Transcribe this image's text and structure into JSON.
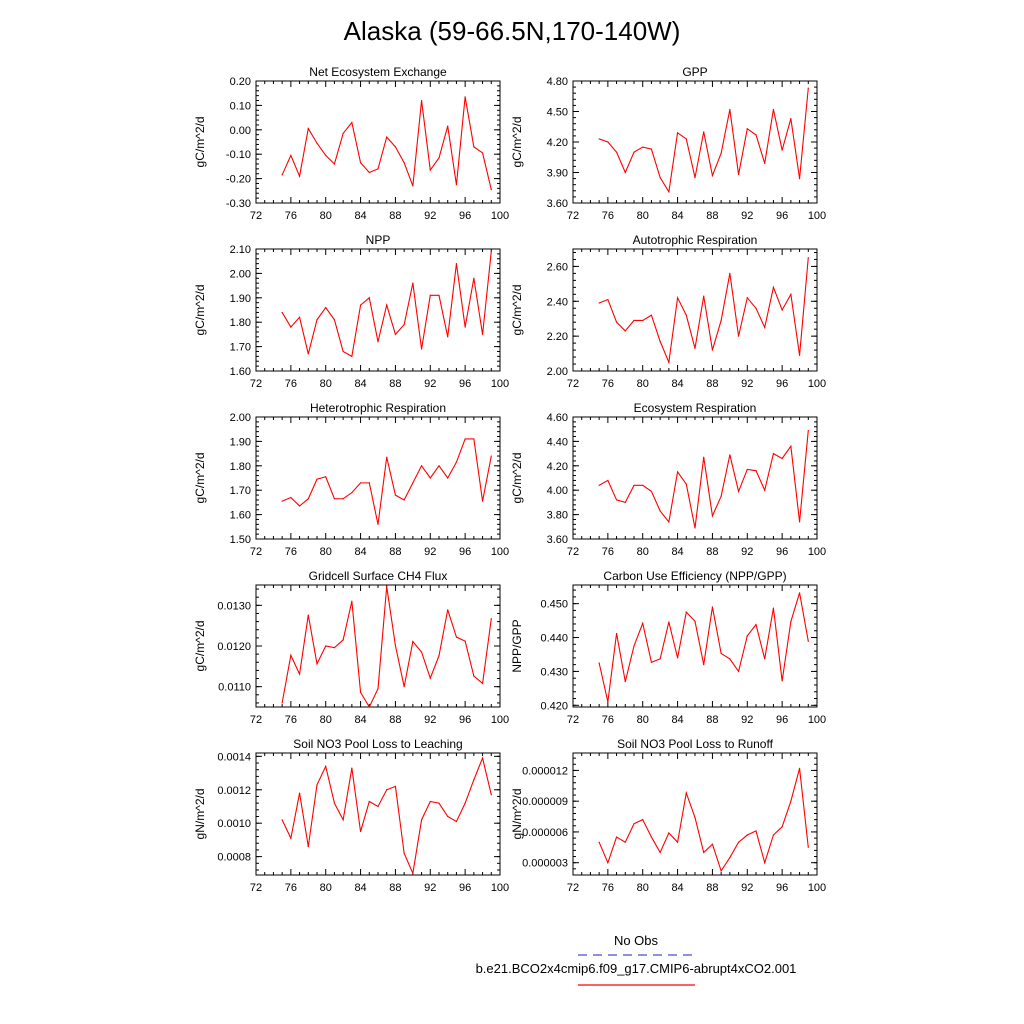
{
  "main_title": "Alaska (59-66.5N,170-140W)",
  "legend": {
    "obs_label": "No Obs",
    "obs_color": "#4a4ad0",
    "model_label": "b.e21.BCO2x4cmip6.f09_g17.CMIP6-abrupt4xCO2.001",
    "model_color": "#ff0000"
  },
  "chart_data": [
    {
      "type": "line",
      "title": "Net Ecosystem Exchange",
      "ylabel": "gC/m^2/d",
      "xlim": [
        72,
        100
      ],
      "xticks": [
        "72",
        "76",
        "80",
        "84",
        "88",
        "92",
        "96",
        "100"
      ],
      "ylim": [
        -0.3,
        0.2
      ],
      "yticks": [
        "-0.30",
        "-0.20",
        "-0.10",
        "0.00",
        "0.10",
        "0.20"
      ],
      "x": [
        75,
        76,
        77,
        78,
        79,
        80,
        81,
        82,
        83,
        84,
        85,
        86,
        87,
        88,
        89,
        90,
        91,
        92,
        93,
        94,
        95,
        96,
        97,
        98,
        99
      ],
      "series": [
        {
          "values": [
            -0.185,
            -0.105,
            -0.19,
            0.005,
            -0.055,
            -0.105,
            -0.14,
            -0.015,
            0.03,
            -0.135,
            -0.175,
            -0.16,
            -0.03,
            -0.07,
            -0.135,
            -0.23,
            0.12,
            -0.165,
            -0.115,
            0.015,
            -0.225,
            0.135,
            -0.07,
            -0.095,
            -0.245
          ]
        }
      ]
    },
    {
      "type": "line",
      "title": "GPP",
      "ylabel": "gC/m^2/d",
      "xlim": [
        72,
        100
      ],
      "xticks": [
        "72",
        "76",
        "80",
        "84",
        "88",
        "92",
        "96",
        "100"
      ],
      "ylim": [
        3.6,
        4.8
      ],
      "yticks": [
        "3.60",
        "3.90",
        "4.20",
        "4.50",
        "4.80"
      ],
      "x": [
        75,
        76,
        77,
        78,
        79,
        80,
        81,
        82,
        83,
        84,
        85,
        86,
        87,
        88,
        89,
        90,
        91,
        92,
        93,
        94,
        95,
        96,
        97,
        98,
        99
      ],
      "series": [
        {
          "values": [
            4.23,
            4.2,
            4.1,
            3.9,
            4.1,
            4.15,
            4.13,
            3.85,
            3.71,
            4.29,
            4.23,
            3.85,
            4.3,
            3.87,
            4.09,
            4.52,
            3.88,
            4.33,
            4.27,
            3.99,
            4.52,
            4.12,
            4.43,
            3.84,
            4.73
          ]
        }
      ]
    },
    {
      "type": "line",
      "title": "NPP",
      "ylabel": "gC/m^2/d",
      "xlim": [
        72,
        100
      ],
      "xticks": [
        "72",
        "76",
        "80",
        "84",
        "88",
        "92",
        "96",
        "100"
      ],
      "ylim": [
        1.6,
        2.1
      ],
      "yticks": [
        "1.60",
        "1.70",
        "1.80",
        "1.90",
        "2.00",
        "2.10"
      ],
      "x": [
        75,
        76,
        77,
        78,
        79,
        80,
        81,
        82,
        83,
        84,
        85,
        86,
        87,
        88,
        89,
        90,
        91,
        92,
        93,
        94,
        95,
        96,
        97,
        98,
        99
      ],
      "series": [
        {
          "values": [
            1.84,
            1.78,
            1.82,
            1.67,
            1.81,
            1.86,
            1.81,
            1.68,
            1.66,
            1.87,
            1.9,
            1.72,
            1.87,
            1.75,
            1.79,
            1.96,
            1.69,
            1.91,
            1.91,
            1.74,
            2.04,
            1.78,
            1.98,
            1.75,
            2.09
          ]
        }
      ]
    },
    {
      "type": "line",
      "title": "Autotrophic Respiration",
      "ylabel": "gC/m^2/d",
      "xlim": [
        72,
        100
      ],
      "xticks": [
        "72",
        "76",
        "80",
        "84",
        "88",
        "92",
        "96",
        "100"
      ],
      "ylim": [
        2.0,
        2.7
      ],
      "yticks": [
        "2.00",
        "2.20",
        "2.40",
        "2.60"
      ],
      "x": [
        75,
        76,
        77,
        78,
        79,
        80,
        81,
        82,
        83,
        84,
        85,
        86,
        87,
        88,
        89,
        90,
        91,
        92,
        93,
        94,
        95,
        96,
        97,
        98,
        99
      ],
      "series": [
        {
          "values": [
            2.39,
            2.41,
            2.28,
            2.23,
            2.29,
            2.29,
            2.32,
            2.17,
            2.05,
            2.42,
            2.32,
            2.13,
            2.43,
            2.12,
            2.29,
            2.56,
            2.2,
            2.42,
            2.36,
            2.25,
            2.48,
            2.35,
            2.44,
            2.09,
            2.65
          ]
        }
      ]
    },
    {
      "type": "line",
      "title": "Heterotrophic Respiration",
      "ylabel": "gC/m^2/d",
      "xlim": [
        72,
        100
      ],
      "xticks": [
        "72",
        "76",
        "80",
        "84",
        "88",
        "92",
        "96",
        "100"
      ],
      "ylim": [
        1.5,
        2.0
      ],
      "yticks": [
        "1.50",
        "1.60",
        "1.70",
        "1.80",
        "1.90",
        "2.00"
      ],
      "x": [
        75,
        76,
        77,
        78,
        79,
        80,
        81,
        82,
        83,
        84,
        85,
        86,
        87,
        88,
        89,
        90,
        91,
        92,
        93,
        94,
        95,
        96,
        97,
        98,
        99
      ],
      "series": [
        {
          "values": [
            1.655,
            1.67,
            1.635,
            1.665,
            1.745,
            1.755,
            1.665,
            1.665,
            1.69,
            1.73,
            1.73,
            1.56,
            1.835,
            1.68,
            1.66,
            1.73,
            1.8,
            1.75,
            1.8,
            1.75,
            1.815,
            1.91,
            1.91,
            1.655,
            1.84
          ]
        }
      ]
    },
    {
      "type": "line",
      "title": "Ecosystem Respiration",
      "ylabel": "gC/m^2/d",
      "xlim": [
        72,
        100
      ],
      "xticks": [
        "72",
        "76",
        "80",
        "84",
        "88",
        "92",
        "96",
        "100"
      ],
      "ylim": [
        3.6,
        4.6
      ],
      "yticks": [
        "3.60",
        "3.80",
        "4.00",
        "4.20",
        "4.40",
        "4.60"
      ],
      "x": [
        75,
        76,
        77,
        78,
        79,
        80,
        81,
        82,
        83,
        84,
        85,
        86,
        87,
        88,
        89,
        90,
        91,
        92,
        93,
        94,
        95,
        96,
        97,
        98,
        99
      ],
      "series": [
        {
          "values": [
            4.04,
            4.08,
            3.92,
            3.9,
            4.04,
            4.04,
            3.99,
            3.83,
            3.74,
            4.15,
            4.05,
            3.69,
            4.27,
            3.79,
            3.95,
            4.29,
            3.99,
            4.17,
            4.16,
            4.0,
            4.3,
            4.26,
            4.36,
            3.74,
            4.49
          ]
        }
      ]
    },
    {
      "type": "line",
      "title": "Gridcell Surface CH4 Flux",
      "ylabel": "gC/m^2/d",
      "xlim": [
        72,
        100
      ],
      "xticks": [
        "72",
        "76",
        "80",
        "84",
        "88",
        "92",
        "96",
        "100"
      ],
      "ylim": [
        0.0105,
        0.0135
      ],
      "yticks": [
        "0.0110",
        "0.0120",
        "0.0130"
      ],
      "x": [
        75,
        76,
        77,
        78,
        79,
        80,
        81,
        82,
        83,
        84,
        85,
        86,
        87,
        88,
        89,
        90,
        91,
        92,
        93,
        94,
        95,
        96,
        97,
        98,
        99
      ],
      "series": [
        {
          "values": [
            0.0106,
            0.01177,
            0.01131,
            0.01276,
            0.01156,
            0.012,
            0.01196,
            0.01215,
            0.0131,
            0.01086,
            0.0105,
            0.01095,
            0.01346,
            0.01201,
            0.011,
            0.01211,
            0.01185,
            0.01121,
            0.01176,
            0.01289,
            0.01222,
            0.01212,
            0.01126,
            0.01108,
            0.01267
          ]
        }
      ]
    },
    {
      "type": "line",
      "title": "Carbon Use Efficiency (NPP/GPP)",
      "ylabel": "NPP/GPP",
      "xlim": [
        72,
        100
      ],
      "xticks": [
        "72",
        "76",
        "80",
        "84",
        "88",
        "92",
        "96",
        "100"
      ],
      "ylim": [
        0.4195,
        0.4555
      ],
      "yticks": [
        "0.420",
        "0.430",
        "0.440",
        "0.450"
      ],
      "x": [
        75,
        76,
        77,
        78,
        79,
        80,
        81,
        82,
        83,
        84,
        85,
        86,
        87,
        88,
        89,
        90,
        91,
        92,
        93,
        94,
        95,
        96,
        97,
        98,
        99
      ],
      "series": [
        {
          "values": [
            0.4325,
            0.421,
            0.4412,
            0.427,
            0.4375,
            0.4442,
            0.4327,
            0.4337,
            0.4446,
            0.434,
            0.4475,
            0.4448,
            0.432,
            0.449,
            0.4353,
            0.4337,
            0.43,
            0.4405,
            0.4438,
            0.4337,
            0.4487,
            0.4272,
            0.4447,
            0.4532,
            0.4389
          ]
        }
      ]
    },
    {
      "type": "line",
      "title": "Soil NO3 Pool Loss to Leaching",
      "ylabel": "gN/m^2/d",
      "xlim": [
        72,
        100
      ],
      "xticks": [
        "72",
        "76",
        "80",
        "84",
        "88",
        "92",
        "96",
        "100"
      ],
      "ylim": [
        0.00069,
        0.00142
      ],
      "yticks": [
        "0.0008",
        "0.0010",
        "0.0012",
        "0.0014"
      ],
      "x": [
        75,
        76,
        77,
        78,
        79,
        80,
        81,
        82,
        83,
        84,
        85,
        86,
        87,
        88,
        89,
        90,
        91,
        92,
        93,
        94,
        95,
        96,
        97,
        98,
        99
      ],
      "series": [
        {
          "values": [
            0.00102,
            0.00091,
            0.00118,
            0.00086,
            0.00123,
            0.00134,
            0.00112,
            0.00102,
            0.00133,
            0.00095,
            0.00113,
            0.0011,
            0.0012,
            0.00122,
            0.00082,
            0.0007,
            0.00102,
            0.00113,
            0.00112,
            0.00104,
            0.00101,
            0.00112,
            0.00126,
            0.00139,
            0.00117
          ]
        }
      ]
    },
    {
      "type": "line",
      "title": "Soil NO3 Pool Loss to Runoff",
      "ylabel": "gN/m^2/d",
      "xlim": [
        72,
        100
      ],
      "xticks": [
        "72",
        "76",
        "80",
        "84",
        "88",
        "92",
        "96",
        "100"
      ],
      "ylim": [
        1.8e-06,
        1.37e-05
      ],
      "yticks": [
        "0.000003",
        "0.000006",
        "0.000009",
        "0.000012"
      ],
      "x": [
        75,
        76,
        77,
        78,
        79,
        80,
        81,
        82,
        83,
        84,
        85,
        86,
        87,
        88,
        89,
        90,
        91,
        92,
        93,
        94,
        95,
        96,
        97,
        98,
        99
      ],
      "series": [
        {
          "values": [
            5e-06,
            3e-06,
            5.5e-06,
            5e-06,
            6.8e-06,
            7.2e-06,
            5.5e-06,
            4e-06,
            5.9e-06,
            5e-06,
            9.8e-06,
            7.4e-06,
            4e-06,
            4.8e-06,
            2.2e-06,
            3.5e-06,
            5e-06,
            5.7e-06,
            6.1e-06,
            3e-06,
            5.7e-06,
            6.5e-06,
            9e-06,
            1.22e-05,
            4.5e-06
          ]
        }
      ]
    }
  ]
}
